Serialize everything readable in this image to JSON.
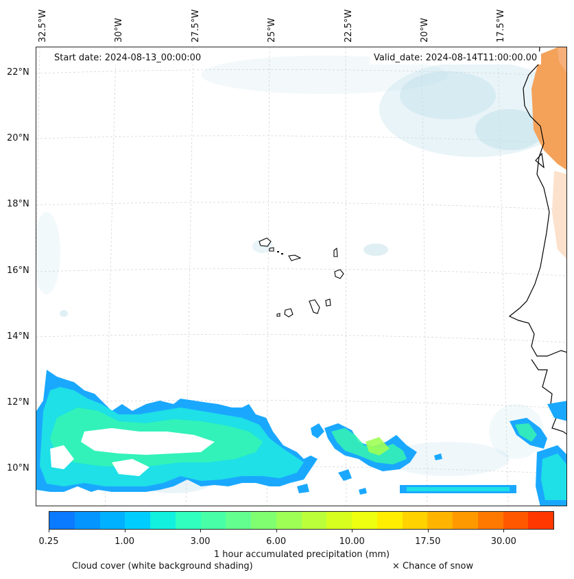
{
  "lon_labels": [
    "32.5°W",
    "30°W",
    "27.5°W",
    "25°W",
    "22.5°W",
    "20°W",
    "17.5°W"
  ],
  "lat_labels": [
    "22°N",
    "20°N",
    "18°N",
    "16°N",
    "14°N",
    "12°N",
    "10°N"
  ],
  "start_date": "Start date: 2024-08-13_00:00:00",
  "valid_date": "Valid_date: 2024-08-14T11:00:00.00",
  "colorbar": {
    "colors": [
      "#0a7aff",
      "#0595ff",
      "#00b1ff",
      "#00cdff",
      "#12f0e0",
      "#30ffc0",
      "#48ffa8",
      "#63ff8f",
      "#80ff70",
      "#9eff55",
      "#bbff3b",
      "#d6ff20",
      "#eeff10",
      "#ffee00",
      "#ffd200",
      "#ffb500",
      "#ff9900",
      "#ff7800",
      "#ff5800",
      "#ff3800"
    ],
    "ticks": [
      "0.25",
      "1.00",
      "3.00",
      "6.00",
      "10.00",
      "17.50",
      "30.00"
    ],
    "label": "1 hour accumulated precipitation (mm)"
  },
  "legend": {
    "cloud_cover": "Cloud cover (white background shading)",
    "snow": "× Chance of snow"
  }
}
